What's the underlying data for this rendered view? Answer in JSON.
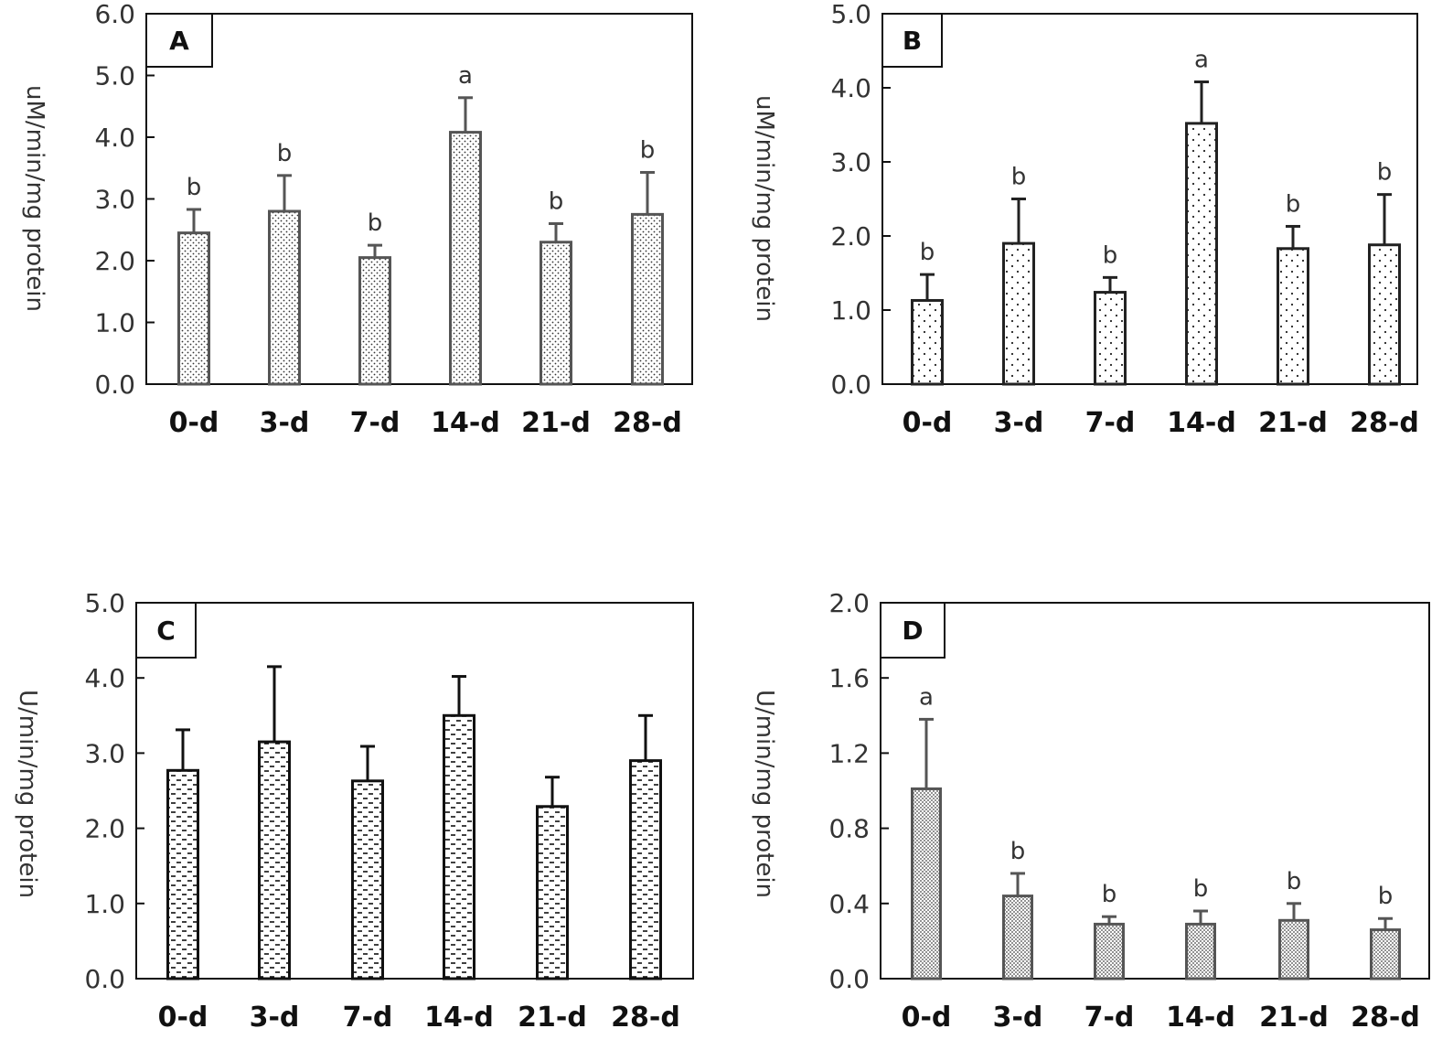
{
  "chart_data": [
    {
      "type": "bar",
      "panel_label": "A",
      "ylabel": "uM/min/mg protein",
      "ylim": [
        0,
        6.0
      ],
      "yticks": [
        "0.0",
        "1.0",
        "2.0",
        "3.0",
        "4.0",
        "5.0",
        "6.0"
      ],
      "categories": [
        "0-d",
        "3-d",
        "7-d",
        "14-d",
        "21-d",
        "28-d"
      ],
      "values": [
        2.45,
        2.8,
        2.05,
        4.08,
        2.3,
        2.75
      ],
      "errors": [
        0.38,
        0.58,
        0.2,
        0.56,
        0.3,
        0.68
      ],
      "letters": [
        "b",
        "b",
        "b",
        "a",
        "b",
        "b"
      ],
      "pattern": "dots-fine",
      "color": "#555555"
    },
    {
      "type": "bar",
      "panel_label": "B",
      "ylabel": "uM/min/mg protein",
      "ylim": [
        0,
        5.0
      ],
      "yticks": [
        "0.0",
        "1.0",
        "2.0",
        "3.0",
        "4.0",
        "5.0"
      ],
      "categories": [
        "0-d",
        "3-d",
        "7-d",
        "14-d",
        "21-d",
        "28-d"
      ],
      "values": [
        1.13,
        1.9,
        1.24,
        3.52,
        1.83,
        1.88
      ],
      "errors": [
        0.35,
        0.6,
        0.2,
        0.56,
        0.3,
        0.68
      ],
      "letters": [
        "b",
        "b",
        "b",
        "a",
        "b",
        "b"
      ],
      "pattern": "dots-sparse",
      "color": "#222222"
    },
    {
      "type": "bar",
      "panel_label": "C",
      "ylabel": "U/min/mg protein",
      "ylim": [
        0,
        5.0
      ],
      "yticks": [
        "0.0",
        "1.0",
        "2.0",
        "3.0",
        "4.0",
        "5.0"
      ],
      "categories": [
        "0-d",
        "3-d",
        "7-d",
        "14-d",
        "21-d",
        "28-d"
      ],
      "values": [
        2.77,
        3.15,
        2.63,
        3.5,
        2.29,
        2.9
      ],
      "errors": [
        0.54,
        1.0,
        0.46,
        0.52,
        0.39,
        0.6
      ],
      "letters": [
        "",
        "",
        "",
        "",
        "",
        ""
      ],
      "pattern": "dashes",
      "color": "#111111"
    },
    {
      "type": "bar",
      "panel_label": "D",
      "ylabel": "U/min/mg protein",
      "ylim": [
        0,
        2.0
      ],
      "yticks": [
        "0.0",
        "0.4",
        "0.8",
        "1.2",
        "1.6",
        "2.0"
      ],
      "categories": [
        "0-d",
        "3-d",
        "7-d",
        "14-d",
        "21-d",
        "28-d"
      ],
      "values": [
        1.01,
        0.44,
        0.29,
        0.29,
        0.31,
        0.26
      ],
      "errors": [
        0.37,
        0.12,
        0.04,
        0.07,
        0.09,
        0.06
      ],
      "letters": [
        "a",
        "b",
        "b",
        "b",
        "b",
        "b"
      ],
      "pattern": "dots-dense",
      "color": "#555555"
    }
  ]
}
